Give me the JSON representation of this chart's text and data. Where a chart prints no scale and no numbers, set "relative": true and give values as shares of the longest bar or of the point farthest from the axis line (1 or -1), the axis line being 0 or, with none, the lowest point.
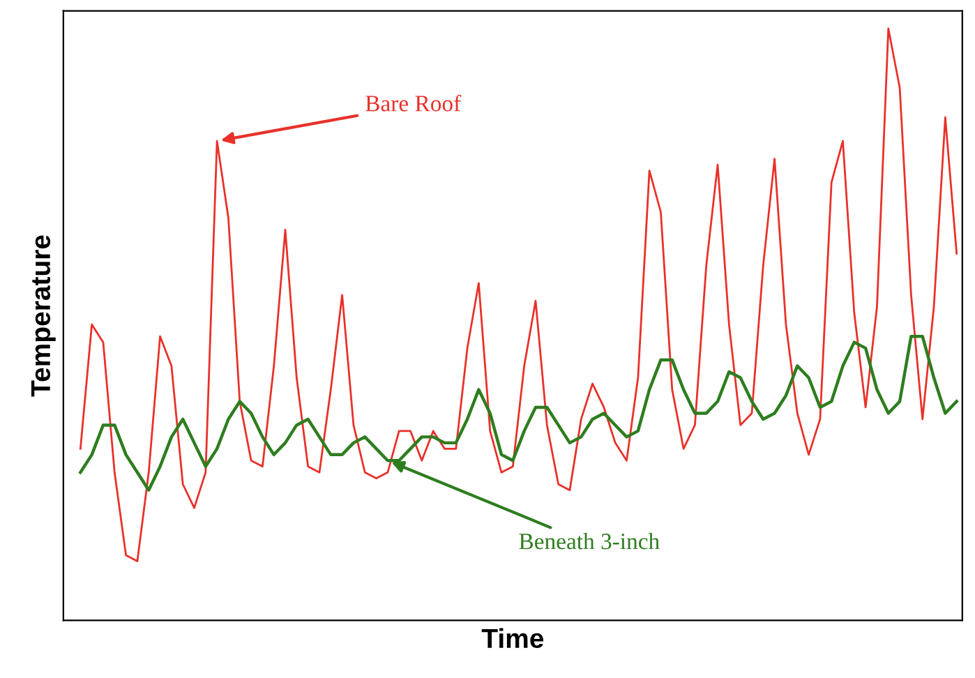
{
  "chart_data": {
    "type": "line",
    "xlabel": "Time",
    "ylabel": "Temperature",
    "relative": true,
    "legend": false,
    "categories": [
      null,
      null,
      null,
      null,
      null,
      null,
      null,
      null,
      null,
      null,
      null,
      null,
      null,
      null,
      null,
      null,
      null,
      null,
      null,
      null,
      null,
      null,
      null,
      null,
      null,
      null,
      null,
      null,
      null,
      null,
      null,
      null,
      null,
      null,
      null,
      null,
      null,
      null,
      null,
      null,
      null,
      null,
      null,
      null,
      null,
      null,
      null,
      null,
      null,
      null,
      null,
      null,
      null,
      null,
      null,
      null,
      null,
      null,
      null,
      null,
      null,
      null,
      null,
      null,
      null,
      null,
      null,
      null,
      null,
      null,
      null,
      null,
      null,
      null,
      null,
      null,
      null,
      null
    ],
    "series": [
      {
        "name": "Bare Roof",
        "color": "#e8312a",
        "values": [
          0.29,
          0.5,
          0.47,
          0.25,
          0.11,
          0.1,
          0.25,
          0.48,
          0.43,
          0.23,
          0.19,
          0.25,
          0.81,
          0.68,
          0.37,
          0.27,
          0.26,
          0.43,
          0.66,
          0.41,
          0.26,
          0.25,
          0.39,
          0.55,
          0.33,
          0.25,
          0.24,
          0.25,
          0.32,
          0.32,
          0.27,
          0.32,
          0.29,
          0.29,
          0.46,
          0.57,
          0.32,
          0.25,
          0.26,
          0.43,
          0.54,
          0.33,
          0.23,
          0.22,
          0.34,
          0.4,
          0.36,
          0.3,
          0.27,
          0.41,
          0.76,
          0.69,
          0.39,
          0.29,
          0.33,
          0.6,
          0.77,
          0.5,
          0.33,
          0.35,
          0.6,
          0.78,
          0.5,
          0.35,
          0.28,
          0.34,
          0.74,
          0.81,
          0.52,
          0.36,
          0.53,
          1.0,
          0.9,
          0.55,
          0.34,
          0.53,
          0.85,
          0.62
        ]
      },
      {
        "name": "Beneath 3-inch",
        "color": "#2e7d1f",
        "values": [
          0.25,
          0.28,
          0.33,
          0.33,
          0.28,
          0.25,
          0.22,
          0.26,
          0.31,
          0.34,
          0.3,
          0.26,
          0.29,
          0.34,
          0.37,
          0.35,
          0.31,
          0.28,
          0.3,
          0.33,
          0.34,
          0.31,
          0.28,
          0.28,
          0.3,
          0.31,
          0.29,
          0.27,
          0.27,
          0.29,
          0.31,
          0.31,
          0.3,
          0.3,
          0.34,
          0.39,
          0.35,
          0.28,
          0.27,
          0.32,
          0.36,
          0.36,
          0.33,
          0.3,
          0.31,
          0.34,
          0.35,
          0.33,
          0.31,
          0.32,
          0.39,
          0.44,
          0.44,
          0.39,
          0.35,
          0.35,
          0.37,
          0.42,
          0.41,
          0.37,
          0.34,
          0.35,
          0.38,
          0.43,
          0.41,
          0.36,
          0.37,
          0.43,
          0.47,
          0.46,
          0.39,
          0.35,
          0.37,
          0.48,
          0.48,
          0.41,
          0.35,
          0.37
        ]
      }
    ]
  }
}
